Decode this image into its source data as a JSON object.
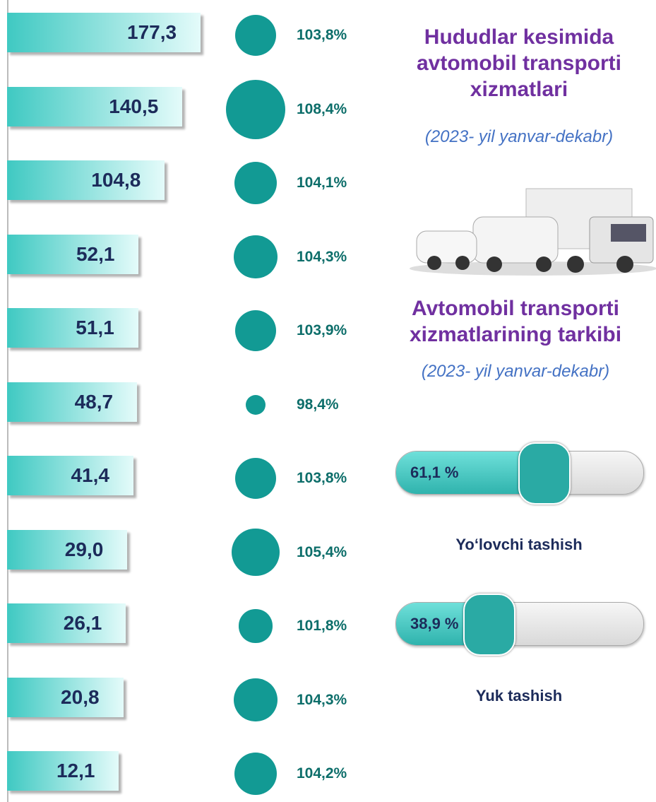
{
  "header": {
    "title": "Hududlar kesimida avtomobil transporti xizmatlari",
    "subtitle": "(2023- yil yanvar-dekabr)"
  },
  "section": {
    "title": "Avtomobil transporti xizmatlarining tarkibi",
    "subtitle": "(2023- yil yanvar-dekabr)"
  },
  "regions": {
    "values": [
      177.3,
      140.5,
      104.8,
      52.1,
      51.1,
      48.7,
      41.4,
      29.0,
      26.1,
      20.8,
      12.1
    ],
    "value_labels": [
      "177,3",
      "140,5",
      "104,8",
      "52,1",
      "51,1",
      "48,7",
      "41,4",
      "29,0",
      "26,1",
      "20,8",
      "12,1"
    ]
  },
  "growth": {
    "values": [
      103.8,
      108.4,
      104.1,
      104.3,
      103.9,
      98.4,
      103.8,
      105.4,
      101.8,
      104.3,
      104.2
    ],
    "value_labels": [
      "103,8%",
      "108,4%",
      "104,1%",
      "104,3%",
      "103,9%",
      "98,4%",
      "103,8%",
      "105,4%",
      "101,8%",
      "104,3%",
      "104,2%"
    ]
  },
  "shares": [
    {
      "name": "Yo‘lovchi tashish",
      "value": 61.1,
      "label": "61,1 %"
    },
    {
      "name": "Yuk tashish",
      "value": 38.9,
      "label": "38,9 %"
    }
  ]
}
